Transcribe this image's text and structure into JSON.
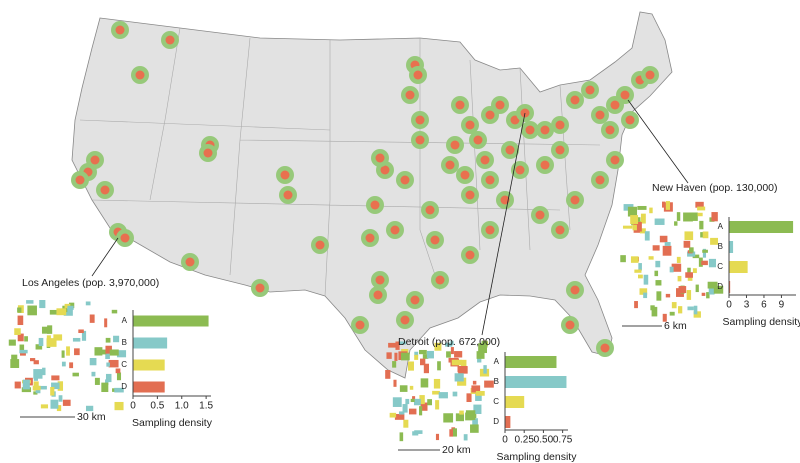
{
  "chart_data": [
    {
      "type": "bar",
      "orientation": "horizontal",
      "title": "Los Angeles (pop. 3,970,000)",
      "scale_label": "30 km",
      "x_label": "Sampling density",
      "categories": [
        "A",
        "B",
        "C",
        "D"
      ],
      "values": [
        1.55,
        0.7,
        0.65,
        0.65
      ],
      "colors": [
        "#8cbb52",
        "#86c9c8",
        "#e5da52",
        "#e26e52"
      ],
      "xlim": [
        0,
        1.6
      ],
      "xticks": [
        0,
        0.5,
        {
          "value": 1,
          "label": "1.0"
        },
        1.5
      ]
    },
    {
      "type": "bar",
      "orientation": "horizontal",
      "title": "Detroit (pop. 672,000)",
      "scale_label": "20 km",
      "x_label": "Sampling density",
      "categories": [
        "A",
        "B",
        "C",
        "D"
      ],
      "values": [
        0.67,
        0.8,
        0.25,
        0.07
      ],
      "colors": [
        "#8cbb52",
        "#86c9c8",
        "#e5da52",
        "#e26e52"
      ],
      "xlim": [
        0,
        0.82
      ],
      "xticks": [
        0,
        0.25,
        {
          "value": 0.5,
          "label": "0.50"
        },
        0.75
      ]
    },
    {
      "type": "bar",
      "orientation": "horizontal",
      "title": "New Haven (pop. 130,000)",
      "scale_label": "6 km",
      "x_label": "Sampling density",
      "categories": [
        "A",
        "B",
        "C",
        "D"
      ],
      "values": [
        11,
        0.7,
        3.2,
        0.2
      ],
      "colors": [
        "#8cbb52",
        "#86c9c8",
        "#e5da52",
        "#e26e52"
      ],
      "xlim": [
        0,
        11.5
      ],
      "xticks": [
        0,
        3,
        6,
        9
      ]
    }
  ]
}
